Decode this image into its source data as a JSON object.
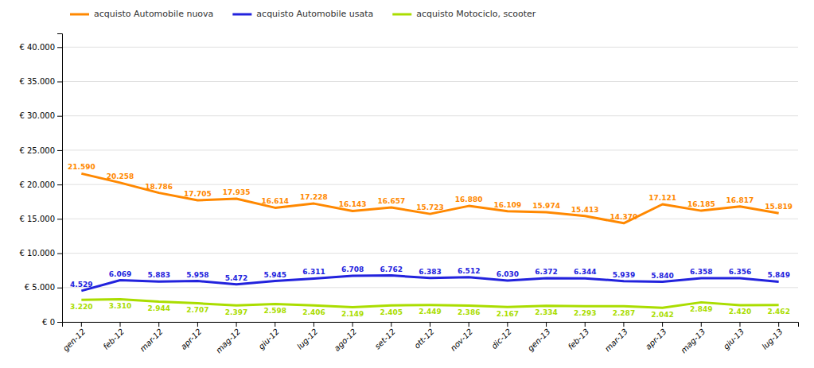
{
  "chart_data": {
    "type": "line",
    "categories": [
      "gen-12",
      "feb-12",
      "mar-12",
      "apr-12",
      "mag-12",
      "giu-12",
      "lug-12",
      "ago-12",
      "set-12",
      "ott-12",
      "nov-12",
      "dic-12",
      "gen-13",
      "feb-13",
      "mar-13",
      "apr-13",
      "mag-13",
      "giu-13",
      "lug-13"
    ],
    "series": [
      {
        "name": "acquisto Automobile nuova",
        "color": "#ff8800",
        "values": [
          21590,
          20258,
          18786,
          17705,
          17935,
          16614,
          17228,
          16143,
          16657,
          15723,
          16880,
          16109,
          15974,
          15413,
          14370,
          17121,
          16185,
          16817,
          15819
        ],
        "value_labels": [
          "21.590",
          "20.258",
          "18.786",
          "17.705",
          "17.935",
          "16.614",
          "17.228",
          "16.143",
          "16.657",
          "15.723",
          "16.880",
          "16.109",
          "15.974",
          "15.413",
          "14.370",
          "17.121",
          "16.185",
          "16.817",
          "15.819"
        ]
      },
      {
        "name": "acquisto Automobile usata",
        "color": "#2222dd",
        "values": [
          4529,
          6069,
          5883,
          5958,
          5472,
          5945,
          6311,
          6708,
          6762,
          6383,
          6512,
          6030,
          6372,
          6344,
          5939,
          5840,
          6358,
          6356,
          5849
        ],
        "value_labels": [
          "4.529",
          "6.069",
          "5.883",
          "5.958",
          "5.472",
          "5.945",
          "6.311",
          "6.708",
          "6.762",
          "6.383",
          "6.512",
          "6.030",
          "6.372",
          "6.344",
          "5.939",
          "5.840",
          "6.358",
          "6.356",
          "5.849"
        ]
      },
      {
        "name": "acquisto Motociclo, scooter",
        "color": "#aadd00",
        "values": [
          3220,
          3310,
          2944,
          2707,
          2397,
          2598,
          2406,
          2149,
          2405,
          2449,
          2386,
          2167,
          2334,
          2293,
          2287,
          2042,
          2849,
          2420,
          2462
        ],
        "value_labels": [
          "3.220",
          "3.310",
          "2.944",
          "2.707",
          "2.397",
          "2.598",
          "2.406",
          "2.149",
          "2.405",
          "2.449",
          "2.386",
          "2.167",
          "2.334",
          "2.293",
          "2.287",
          "2.042",
          "2.849",
          "2.420",
          "2.462"
        ]
      }
    ],
    "ylim": [
      0,
      42000
    ],
    "yticks": [
      {
        "value": 0,
        "label": "€ 0"
      },
      {
        "value": 5000,
        "label": "€ 5.000"
      },
      {
        "value": 10000,
        "label": "€ 10.000"
      },
      {
        "value": 15000,
        "label": "€ 15.000"
      },
      {
        "value": 20000,
        "label": "€ 20.000"
      },
      {
        "value": 25000,
        "label": "€ 25.000"
      },
      {
        "value": 30000,
        "label": "€ 30.000"
      },
      {
        "value": 35000,
        "label": "€ 35.000"
      },
      {
        "value": 40000,
        "label": "€ 40.000"
      }
    ],
    "grid": true,
    "legend": "upper left",
    "data_labels": true
  }
}
